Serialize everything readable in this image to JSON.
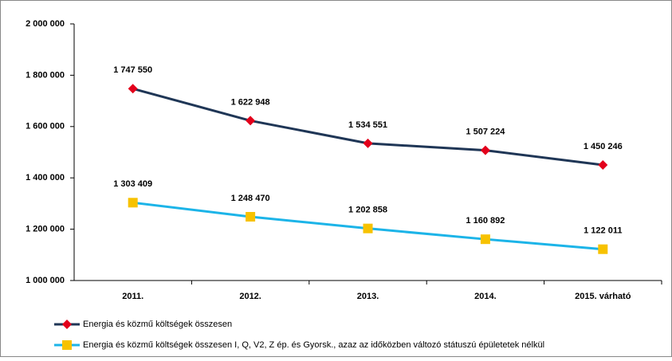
{
  "chart_data": {
    "type": "line",
    "categories": [
      "2011.",
      "2012.",
      "2013.",
      "2014.",
      "2015. várható"
    ],
    "series": [
      {
        "name": "Energia és közmű költségek összesen",
        "color": "#1f3656",
        "marker": "diamond",
        "marker_color": "#e3001b",
        "values": [
          1747550,
          1622948,
          1534551,
          1507224,
          1450246
        ],
        "value_labels": [
          "1 747 550",
          "1 622 948",
          "1 534 551",
          "1 507 224",
          "1 450 246"
        ]
      },
      {
        "name": "Energia és közmű költségek összesen  I, Q, V2, Z ép. és Gyorsk., azaz az időközben változó státuszú épületetek nélkül",
        "color": "#1cb4e8",
        "marker": "square",
        "marker_color": "#f7c200",
        "values": [
          1303409,
          1248470,
          1202858,
          1160892,
          1122011
        ],
        "value_labels": [
          "1 303 409",
          "1 248 470",
          "1 202 858",
          "1 160 892",
          "1 122 011"
        ]
      }
    ],
    "ylim": [
      1000000,
      2000000
    ],
    "yticks": [
      {
        "value": 1000000,
        "label": "1 000 000"
      },
      {
        "value": 1200000,
        "label": "1 200 000"
      },
      {
        "value": 1400000,
        "label": "1 400 000"
      },
      {
        "value": 1600000,
        "label": "1 600 000"
      },
      {
        "value": 1800000,
        "label": "1 800 000"
      },
      {
        "value": 2000000,
        "label": "2 000 000"
      }
    ],
    "grid": false
  }
}
